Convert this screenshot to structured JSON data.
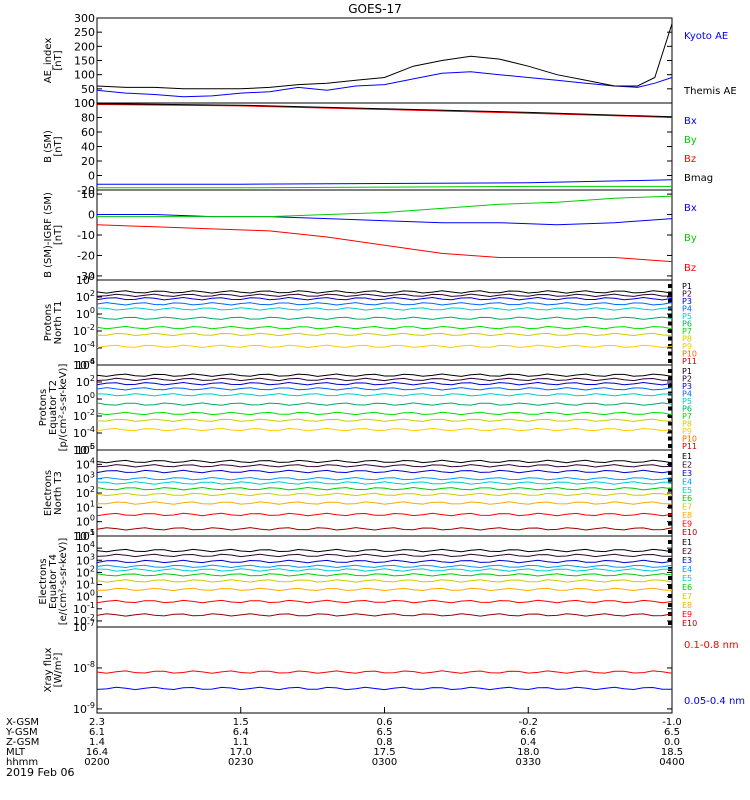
{
  "title": "GOES-17",
  "date": "2019 Feb 06",
  "colors": {
    "black": "#000000",
    "blue": "#0000ff",
    "green": "#00cc00",
    "red": "#ff0000"
  },
  "chart_data": [
    {
      "type": "line",
      "id": "ae",
      "ylabel": [
        "AE_index",
        "[nT]"
      ],
      "yticks": [
        "300",
        "250",
        "200",
        "150",
        "100",
        "50",
        "0"
      ],
      "ylim": [
        0,
        300
      ],
      "x": [
        0,
        0.05,
        0.1,
        0.15,
        0.2,
        0.25,
        0.3,
        0.35,
        0.4,
        0.45,
        0.5,
        0.55,
        0.6,
        0.65,
        0.7,
        0.75,
        0.8,
        0.85,
        0.9,
        0.94,
        0.97,
        1.0
      ],
      "series": [
        {
          "name": "Kyoto AE",
          "color": "#0000ff",
          "values": [
            45,
            35,
            30,
            22,
            25,
            35,
            40,
            55,
            45,
            60,
            65,
            85,
            105,
            110,
            100,
            90,
            80,
            70,
            60,
            55,
            70,
            90
          ]
        },
        {
          "name": "Themis AE",
          "color": "#000000",
          "values": [
            60,
            55,
            55,
            50,
            50,
            50,
            55,
            65,
            70,
            80,
            90,
            130,
            150,
            165,
            155,
            130,
            100,
            80,
            60,
            60,
            90,
            280
          ]
        }
      ]
    },
    {
      "type": "line",
      "id": "bsm",
      "ylabel": [
        "B (SM)",
        "[nT]"
      ],
      "yticks": [
        "100",
        "80",
        "60",
        "40",
        "20",
        "0",
        "-20"
      ],
      "ylim": [
        -20,
        100
      ],
      "x": [
        0,
        0.25,
        0.5,
        0.75,
        1.0
      ],
      "series": [
        {
          "name": "Bx",
          "color": "#0000ff",
          "values": [
            -12,
            -12,
            -11,
            -10,
            -6
          ]
        },
        {
          "name": "By",
          "color": "#00cc00",
          "values": [
            -17,
            -17,
            -16,
            -15,
            -15
          ]
        },
        {
          "name": "Bz",
          "color": "#ff0000",
          "values": [
            98,
            96,
            91,
            86,
            80
          ]
        },
        {
          "name": "Bmag",
          "color": "#000000",
          "values": [
            99,
            97,
            92,
            87,
            81
          ]
        }
      ]
    },
    {
      "type": "line",
      "id": "bigrf",
      "ylabel": [
        "B (SM)-IGRF (SM)",
        "[nT]"
      ],
      "yticks": [
        "10",
        "0",
        "-10",
        "-20",
        "-30"
      ],
      "ylim": [
        -32,
        12
      ],
      "x": [
        0,
        0.1,
        0.2,
        0.3,
        0.4,
        0.5,
        0.6,
        0.7,
        0.8,
        0.9,
        1.0
      ],
      "series": [
        {
          "name": "Bx",
          "color": "#0000ff",
          "values": [
            0,
            0,
            -1,
            -1,
            -2,
            -3,
            -4,
            -4,
            -5,
            -4,
            -2
          ]
        },
        {
          "name": "By",
          "color": "#00cc00",
          "values": [
            -1,
            -1,
            -1,
            -1,
            0,
            1,
            3,
            5,
            6,
            8,
            9
          ]
        },
        {
          "name": "Bz",
          "color": "#ff0000",
          "values": [
            -5,
            -6,
            -7,
            -8,
            -11,
            -15,
            -19,
            -21,
            -21,
            -21,
            -23
          ]
        }
      ]
    },
    {
      "type": "line",
      "id": "pn",
      "scale": "log",
      "ylabel": [
        "Protons",
        "North T1"
      ],
      "yticks": [
        "10^4",
        "10^2",
        "10^0",
        "10^-2",
        "10^-4",
        "10^-6"
      ],
      "ylim": [
        -6,
        4
      ],
      "series": [
        {
          "name": "P1",
          "color": "#000000",
          "values": [
            2.6
          ]
        },
        {
          "name": "P2",
          "color": "#330033",
          "values": [
            2.2
          ]
        },
        {
          "name": "P3",
          "color": "#0000cc",
          "values": [
            1.8
          ]
        },
        {
          "name": "P4",
          "color": "#0066ff",
          "values": [
            1.2
          ]
        },
        {
          "name": "P5",
          "color": "#00cccc",
          "values": [
            0.6
          ]
        },
        {
          "name": "P6",
          "color": "#00aa66",
          "values": [
            -0.5
          ]
        },
        {
          "name": "P7",
          "color": "#00dd00",
          "values": [
            -1.6
          ]
        },
        {
          "name": "P8",
          "color": "#cccc00",
          "values": [
            -2.4
          ]
        },
        {
          "name": "P9",
          "color": "#ffcc00",
          "values": [
            -3.8
          ]
        },
        {
          "name": "P10",
          "color": "#ff6600",
          "values": []
        },
        {
          "name": "P11",
          "color": "#cc0000",
          "values": []
        }
      ]
    },
    {
      "type": "line",
      "id": "pe",
      "scale": "log",
      "ylabel": [
        "Protons",
        "Equator T2",
        "[p/(cm²-s-sr-keV)]"
      ],
      "yticks": [
        "10^4",
        "10^2",
        "10^0",
        "10^-2",
        "10^-4",
        "10^-6"
      ],
      "ylim": [
        -6,
        4
      ],
      "series": [
        {
          "name": "P1",
          "color": "#000000",
          "values": [
            2.8
          ]
        },
        {
          "name": "P2",
          "color": "#330033",
          "values": [
            2.3
          ]
        },
        {
          "name": "P3",
          "color": "#0000cc",
          "values": [
            1.8
          ]
        },
        {
          "name": "P4",
          "color": "#0066ff",
          "values": [
            1.2
          ]
        },
        {
          "name": "P5",
          "color": "#00cccc",
          "values": [
            0.5
          ]
        },
        {
          "name": "P6",
          "color": "#00aa66",
          "values": [
            -0.6
          ]
        },
        {
          "name": "P7",
          "color": "#00dd00",
          "values": [
            -1.7
          ]
        },
        {
          "name": "P8",
          "color": "#cccc00",
          "values": [
            -2.5
          ]
        },
        {
          "name": "P9",
          "color": "#ffcc00",
          "values": [
            -3.6
          ]
        },
        {
          "name": "P10",
          "color": "#ff6600",
          "values": []
        },
        {
          "name": "P11",
          "color": "#cc0000",
          "values": []
        }
      ]
    },
    {
      "type": "line",
      "id": "en",
      "scale": "log",
      "ylabel": [
        "Electrons",
        "North T3"
      ],
      "yticks": [
        "10^5",
        "10^4",
        "10^3",
        "10^2",
        "10^1",
        "10^0",
        "10^-1"
      ],
      "ylim": [
        -1,
        5
      ],
      "series": [
        {
          "name": "E1",
          "color": "#000000",
          "values": [
            4.2
          ]
        },
        {
          "name": "E2",
          "color": "#330033",
          "values": [
            3.9
          ]
        },
        {
          "name": "E3",
          "color": "#0000cc",
          "values": [
            3.5
          ]
        },
        {
          "name": "E4",
          "color": "#0099ff",
          "values": [
            3.0
          ]
        },
        {
          "name": "E5",
          "color": "#00cccc",
          "values": [
            2.7
          ]
        },
        {
          "name": "E6",
          "color": "#00cc00",
          "values": [
            2.3
          ]
        },
        {
          "name": "E7",
          "color": "#cccc00",
          "values": [
            1.9
          ]
        },
        {
          "name": "E8",
          "color": "#ffaa00",
          "values": [
            1.3
          ]
        },
        {
          "name": "E9",
          "color": "#ff0000",
          "values": [
            0.5
          ]
        },
        {
          "name": "E10",
          "color": "#990000",
          "values": [
            -0.5
          ]
        }
      ]
    },
    {
      "type": "line",
      "id": "ee",
      "scale": "log",
      "ylabel": [
        "Electrons",
        "Equator T4",
        "[e/(cm²-s-sr-keV)]"
      ],
      "yticks": [
        "10^5",
        "10^4",
        "10^3",
        "10^2",
        "10^1",
        "10^0",
        "10^-1",
        "10^-2"
      ],
      "ylim": [
        -2.5,
        5
      ],
      "series": [
        {
          "name": "E1",
          "color": "#000000",
          "values": [
            3.8
          ]
        },
        {
          "name": "E2",
          "color": "#330033",
          "values": [
            3.4
          ]
        },
        {
          "name": "E3",
          "color": "#0000cc",
          "values": [
            2.9
          ]
        },
        {
          "name": "E4",
          "color": "#0099ff",
          "values": [
            2.5
          ]
        },
        {
          "name": "E5",
          "color": "#00cccc",
          "values": [
            2.2
          ]
        },
        {
          "name": "E6",
          "color": "#00cc00",
          "values": [
            1.8
          ]
        },
        {
          "name": "E7",
          "color": "#cccc00",
          "values": [
            1.3
          ]
        },
        {
          "name": "E8",
          "color": "#ffaa00",
          "values": [
            0.6
          ]
        },
        {
          "name": "E9",
          "color": "#ff0000",
          "values": [
            -0.4
          ]
        },
        {
          "name": "E10",
          "color": "#990000",
          "values": [
            -1.5
          ]
        }
      ]
    },
    {
      "type": "line",
      "id": "xray",
      "scale": "log",
      "ylabel": [
        "Xray flux",
        "[W/m²]"
      ],
      "yticks": [
        "10^-7",
        "10^-8",
        "10^-9"
      ],
      "ylim": [
        -9.1,
        -7
      ],
      "series": [
        {
          "name": "0.1-0.8 nm",
          "color": "#ff0000",
          "values": [
            -8.1
          ]
        },
        {
          "name": "0.05-0.4 nm",
          "color": "#0000ff",
          "values": [
            -8.5
          ]
        }
      ]
    }
  ],
  "xaxis": {
    "row_labels": [
      "X-GSM",
      "Y-GSM",
      "Z-GSM",
      "MLT",
      "hhmm"
    ],
    "columns": [
      [
        "2.3",
        "6.1",
        "1.4",
        "16.4",
        "0200"
      ],
      [
        "1.5",
        "6.4",
        "1.1",
        "17.0",
        "0230"
      ],
      [
        "0.6",
        "6.5",
        "0.8",
        "17.5",
        "0300"
      ],
      [
        "-0.2",
        "6.6",
        "0.4",
        "18.0",
        "0330"
      ],
      [
        "-1.0",
        "6.5",
        "0.0",
        "18.5",
        "0400"
      ]
    ]
  }
}
